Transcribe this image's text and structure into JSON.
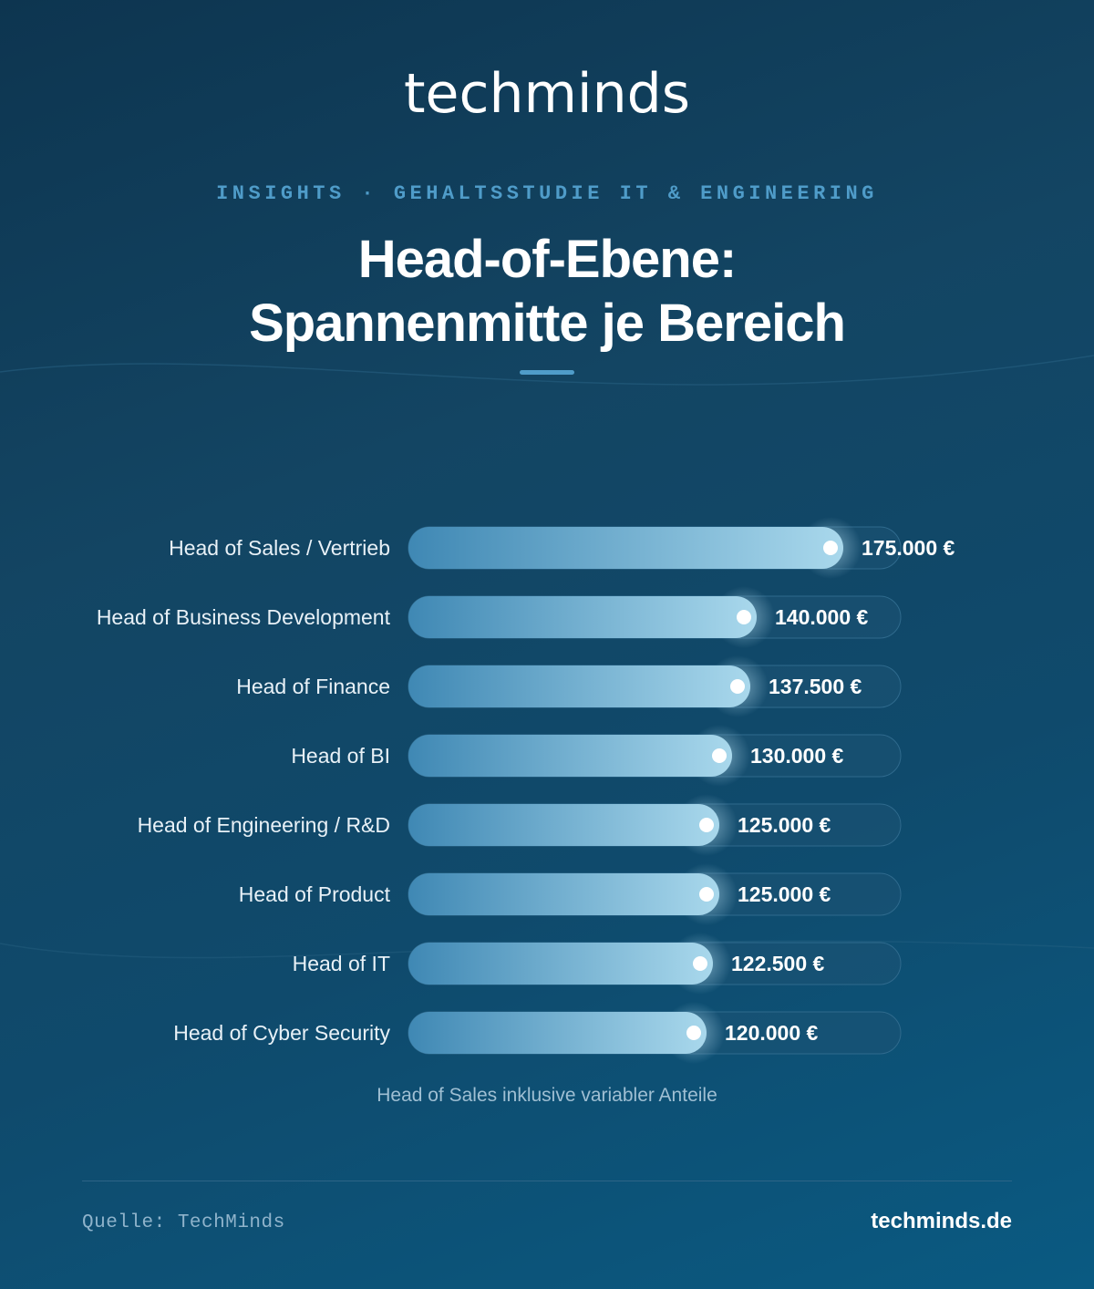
{
  "brand": {
    "logo_text": "techminds"
  },
  "header": {
    "kicker": "INSIGHTS · GEHALTSSTUDIE IT & ENGINEERING",
    "title_line1": "Head-of-Ebene:",
    "title_line2": "Spannenmitte je Bereich"
  },
  "colors": {
    "accent": "#4f9cc9",
    "bar_start": "#3f88b4",
    "bar_end": "#a9d8ec",
    "track": "#1e5475"
  },
  "chart_data": {
    "type": "bar",
    "orientation": "horizontal",
    "categories": [
      "Head of Sales / Vertrieb",
      "Head of Business Development",
      "Head of Finance",
      "Head of BI",
      "Head of Engineering / R&D",
      "Head of Product",
      "Head of IT",
      "Head of Cyber Security"
    ],
    "values": [
      175000,
      140000,
      137500,
      130000,
      125000,
      125000,
      122500,
      120000
    ],
    "value_labels": [
      "175.000 €",
      "140.000 €",
      "137.500 €",
      "130.000 €",
      "125.000 €",
      "125.000 €",
      "122.500 €",
      "120.000 €"
    ],
    "xlim": [
      0,
      198000
    ],
    "grid": false,
    "title": "",
    "xlabel": "",
    "ylabel": ""
  },
  "note": "Head of Sales inklusive variabler Anteile",
  "footer": {
    "source": "Quelle: TechMinds",
    "site": "techminds.de"
  }
}
